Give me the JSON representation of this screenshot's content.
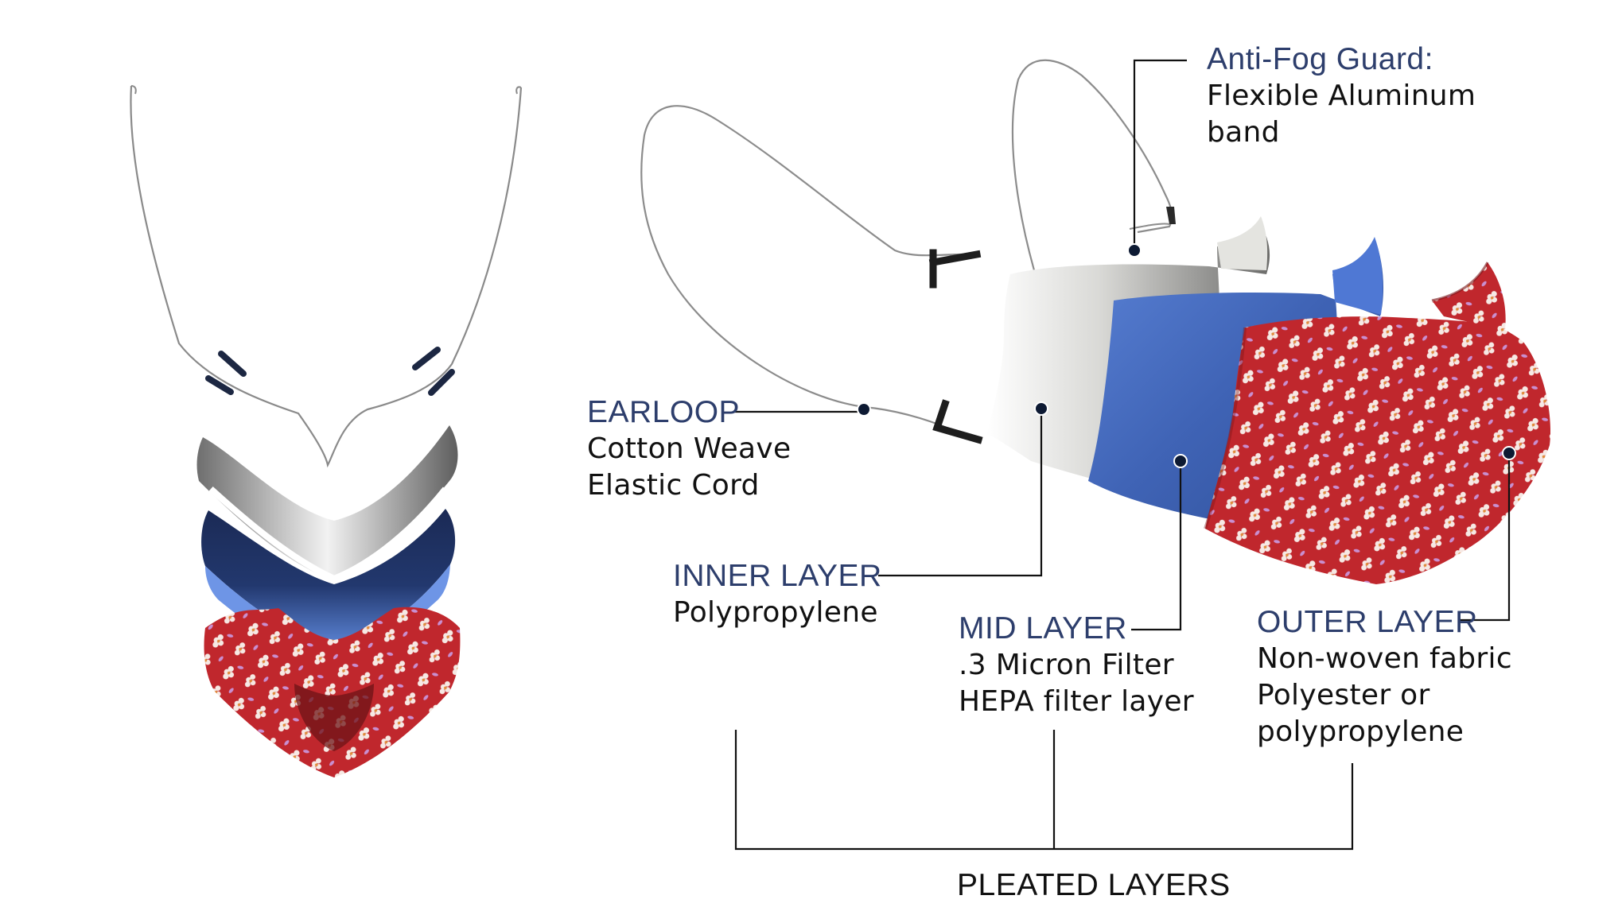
{
  "labels": {
    "anti_fog": {
      "title": "Anti-Fog Guard:",
      "lines": [
        "Flexible Aluminum",
        "band"
      ]
    },
    "earloop": {
      "title": "EARLOOP",
      "lines": [
        "Cotton Weave",
        "Elastic Cord"
      ]
    },
    "inner": {
      "title": "INNER LAYER",
      "lines": [
        "Polypropylene"
      ]
    },
    "mid": {
      "title": "MID LAYER",
      "lines": [
        ".3 Micron Filter",
        "HEPA filter layer"
      ]
    },
    "outer": {
      "title": "OUTER LAYER",
      "lines": [
        "Non-woven fabric",
        "Polyester or",
        "polypropylene"
      ]
    },
    "pleated": "PLEATED LAYERS"
  },
  "colors": {
    "heading": "#2d3e6c",
    "text": "#111111",
    "leader": "#111111",
    "inner_layer": "#f1f1ee",
    "mid_layer": "#4a6fc2",
    "outer_layer": "#c0272d",
    "flower": "#f6e9e4"
  }
}
